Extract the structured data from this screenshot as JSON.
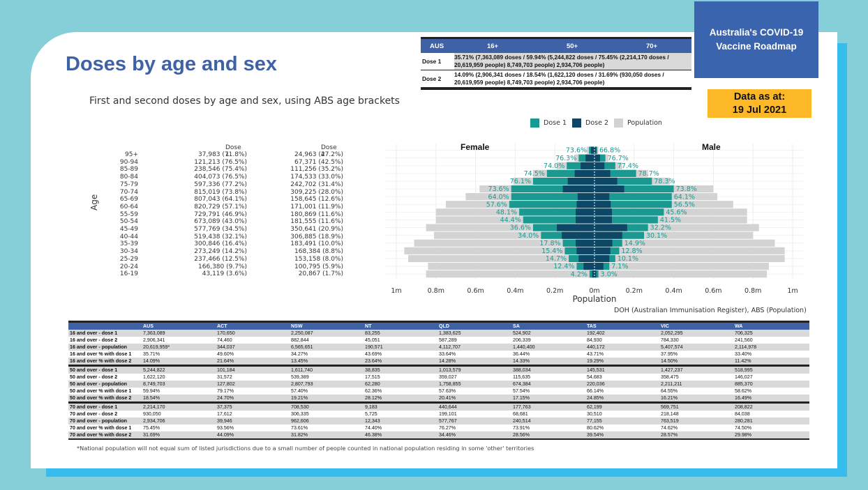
{
  "header": {
    "title": "Doses by age and sex",
    "subtitle": "First and second doses by age and sex, using ABS age brackets",
    "roadmap": "Australia's COVID-19 Vaccine Roadmap",
    "as_at_label": "Data as at:",
    "as_at_date": "19 Jul 2021"
  },
  "summary": {
    "headers": [
      "AUS",
      "16+",
      "50+",
      "70+"
    ],
    "rows": [
      {
        "label": "Dose 1",
        "text": "35.71% (7,363,089 doses / 59.94% (5,244,822 doses / 75.45% (2,214,170 doses / 20,619,959 people) 8,749,703 people) 2,934,706 people)"
      },
      {
        "label": "Dose 2",
        "text": "14.09% (2,906,341 doses / 18.54% (1,622,120 doses / 31.69% (930,050 doses / 20,619,959 people) 8,749,703 people) 2,934,706 people)"
      }
    ]
  },
  "legend": {
    "dose1": "Dose 1",
    "dose2": "Dose 2",
    "population": "Population"
  },
  "colors": {
    "dose1": "#1a9991",
    "dose2": "#0e4766",
    "population": "#d3d3d3",
    "accent": "#3f61a6",
    "orange": "#fdb827"
  },
  "age_table": {
    "axis_label": "Age",
    "col_dose1": "Dose 1",
    "col_dose2": "Dose 2",
    "rows": [
      {
        "age": "95+",
        "d1": "37,983 (71.8%)",
        "d2": "24,963 (47.2%)"
      },
      {
        "age": "90-94",
        "d1": "121,213 (76.5%)",
        "d2": "67,371 (42.5%)"
      },
      {
        "age": "85-89",
        "d1": "238,546 (75.4%)",
        "d2": "111,256 (35.2%)"
      },
      {
        "age": "80-84",
        "d1": "404,073 (76.5%)",
        "d2": "174,533 (33.0%)"
      },
      {
        "age": "75-79",
        "d1": "597,336 (77.2%)",
        "d2": "242,702 (31.4%)"
      },
      {
        "age": "70-74",
        "d1": "815,019 (73.8%)",
        "d2": "309,225 (28.0%)"
      },
      {
        "age": "65-69",
        "d1": "807,043 (64.1%)",
        "d2": "158,645 (12.6%)"
      },
      {
        "age": "60-64",
        "d1": "820,729 (57.1%)",
        "d2": "171,001 (11.9%)"
      },
      {
        "age": "55-59",
        "d1": "729,791 (46.9%)",
        "d2": "180,869 (11.6%)"
      },
      {
        "age": "50-54",
        "d1": "673,089 (43.0%)",
        "d2": "181,555 (11.6%)"
      },
      {
        "age": "45-49",
        "d1": "577,769 (34.5%)",
        "d2": "350,641 (20.9%)"
      },
      {
        "age": "40-44",
        "d1": "519,438 (32.1%)",
        "d2": "306,885 (18.9%)"
      },
      {
        "age": "35-39",
        "d1": "300,846 (16.4%)",
        "d2": "183,491 (10.0%)"
      },
      {
        "age": "30-34",
        "d1": "273,249 (14.2%)",
        "d2": "168,384 (8.8%)"
      },
      {
        "age": "25-29",
        "d1": "237,466 (12.5%)",
        "d2": "153,158 (8.0%)"
      },
      {
        "age": "20-24",
        "d1": "166,380 (9.7%)",
        "d2": "100,795 (5.9%)"
      },
      {
        "age": "16-19",
        "d1": "43,119 (3.6%)",
        "d2": "20,867 (1.7%)"
      }
    ]
  },
  "chart_data": {
    "type": "bar",
    "orientation": "horizontal-pyramid",
    "xlabel": "Population",
    "female_label": "Female",
    "male_label": "Male",
    "x_ticks": [
      "1m",
      "0.8m",
      "0.6m",
      "0.4m",
      "0.2m",
      "0m",
      "0.2m",
      "0.4m",
      "0.6m",
      "0.8m",
      "1m"
    ],
    "xlim": [
      -1000000,
      1000000
    ],
    "categories": [
      "95+",
      "90-94",
      "85-89",
      "80-84",
      "75-79",
      "70-74",
      "65-69",
      "60-64",
      "55-59",
      "50-54",
      "45-49",
      "40-44",
      "35-39",
      "30-34",
      "25-29",
      "20-24",
      "16-19"
    ],
    "female": {
      "population": [
        40000,
        100000,
        190000,
        310000,
        410000,
        580000,
        650000,
        750000,
        800000,
        800000,
        850000,
        810000,
        910000,
        960000,
        940000,
        840000,
        850000
      ],
      "dose1": [
        28000,
        80000,
        140000,
        240000,
        310000,
        420000,
        420000,
        430000,
        380000,
        360000,
        310000,
        270000,
        160000,
        150000,
        130000,
        90000,
        25000
      ],
      "dose2": [
        18000,
        45000,
        70000,
        100000,
        135000,
        160000,
        85000,
        90000,
        95000,
        95000,
        190000,
        165000,
        95000,
        90000,
        80000,
        55000,
        12000
      ],
      "pct_labels": [
        "73.6%",
        "76.3%",
        "74.0%",
        "74.5%",
        "76.1%",
        "73.6%",
        "64.0%",
        "57.6%",
        "48.1%",
        "44.4%",
        "36.6%",
        "34.0%",
        "17.8%",
        "15.4%",
        "14.7%",
        "12.4%",
        "4.2%"
      ]
    },
    "male": {
      "population": [
        20000,
        70000,
        140000,
        270000,
        380000,
        600000,
        620000,
        700000,
        770000,
        770000,
        830000,
        800000,
        910000,
        960000,
        960000,
        880000,
        870000
      ],
      "dose1": [
        14000,
        55000,
        105000,
        210000,
        290000,
        400000,
        390000,
        390000,
        350000,
        320000,
        270000,
        250000,
        140000,
        125000,
        105000,
        75000,
        20000
      ],
      "dose2": [
        8000,
        28000,
        50000,
        80000,
        115000,
        150000,
        75000,
        82000,
        88000,
        88000,
        165000,
        140000,
        90000,
        80000,
        75000,
        45000,
        9000
      ],
      "pct_labels": [
        "66.8%",
        "76.7%",
        "77.4%",
        "78.7%",
        "78.3%",
        "73.8%",
        "64.1%",
        "56.5%",
        "45.6%",
        "41.5%",
        "32.2%",
        "30.1%",
        "14.9%",
        "12.8%",
        "10.1%",
        "7.1%",
        "3.0%"
      ]
    }
  },
  "source": "DOH (Australian Immunisation Register), ABS (Population)",
  "jurisdictions": {
    "headers": [
      "",
      "AUS",
      "ACT",
      "NSW",
      "NT",
      "QLD",
      "SA",
      "TAS",
      "VIC",
      "WA"
    ],
    "rows": [
      [
        "16 and over - dose 1",
        "7,363,089",
        "170,650",
        "2,250,087",
        "83,255",
        "1,383,625",
        "524,902",
        "192,402",
        "2,052,295",
        "706,325"
      ],
      [
        "16 and over - dose 2",
        "2,906,341",
        "74,460",
        "882,844",
        "45,051",
        "587,289",
        "206,339",
        "84,930",
        "784,330",
        "241,560"
      ],
      [
        "16 and over - population",
        "20,619,959*",
        "344,037",
        "6,565,651",
        "190,571",
        "4,112,707",
        "1,440,400",
        "440,172",
        "5,407,574",
        "2,114,978"
      ],
      [
        "16 and over % with dose 1",
        "35.71%",
        "49.60%",
        "34.27%",
        "43.69%",
        "33.64%",
        "36.44%",
        "43.71%",
        "37.95%",
        "33.40%"
      ],
      [
        "16 and over % with dose 2",
        "14.09%",
        "21.64%",
        "13.45%",
        "23.64%",
        "14.28%",
        "14.33%",
        "19.29%",
        "14.50%",
        "11.42%"
      ],
      [
        "50 and over - dose 1",
        "5,244,822",
        "101,184",
        "1,611,740",
        "38,835",
        "1,013,579",
        "388,034",
        "145,531",
        "1,427,237",
        "518,995"
      ],
      [
        "50 and over - dose 2",
        "1,622,120",
        "31,572",
        "539,389",
        "17,515",
        "359,027",
        "115,635",
        "54,683",
        "358,475",
        "146,027"
      ],
      [
        "50 and over - population",
        "8,749,703",
        "127,802",
        "2,807,793",
        "62,280",
        "1,758,855",
        "674,384",
        "220,036",
        "2,211,211",
        "885,370"
      ],
      [
        "50 and over % with dose 1",
        "59.94%",
        "79.17%",
        "57.40%",
        "62.36%",
        "57.63%",
        "57.54%",
        "66.14%",
        "64.55%",
        "58.62%"
      ],
      [
        "50 and over % with dose 2",
        "18.54%",
        "24.70%",
        "19.21%",
        "28.12%",
        "20.41%",
        "17.15%",
        "24.85%",
        "16.21%",
        "16.49%"
      ],
      [
        "70 and over - dose 1",
        "2,214,170",
        "37,375",
        "708,530",
        "9,183",
        "440,644",
        "177,763",
        "62,199",
        "569,751",
        "208,822"
      ],
      [
        "70 and over - dose 2",
        "930,050",
        "17,612",
        "306,335",
        "5,725",
        "199,101",
        "68,681",
        "30,510",
        "218,148",
        "84,038"
      ],
      [
        "70 and over - population",
        "2,934,706",
        "39,946",
        "962,606",
        "12,343",
        "577,767",
        "240,514",
        "77,155",
        "763,519",
        "280,281"
      ],
      [
        "70 and over % with dose 1",
        "75.45%",
        "93.56%",
        "73.61%",
        "74.40%",
        "76.27%",
        "73.91%",
        "80.62%",
        "74.62%",
        "74.50%"
      ],
      [
        "70 and over % with dose 2",
        "31.69%",
        "44.09%",
        "31.82%",
        "46.38%",
        "34.46%",
        "28.56%",
        "39.54%",
        "28.57%",
        "29.98%"
      ]
    ]
  },
  "footnote": "*National population will not equal sum of listed jurisdictions due to a small number of people counted in national population residing in some 'other' territories"
}
